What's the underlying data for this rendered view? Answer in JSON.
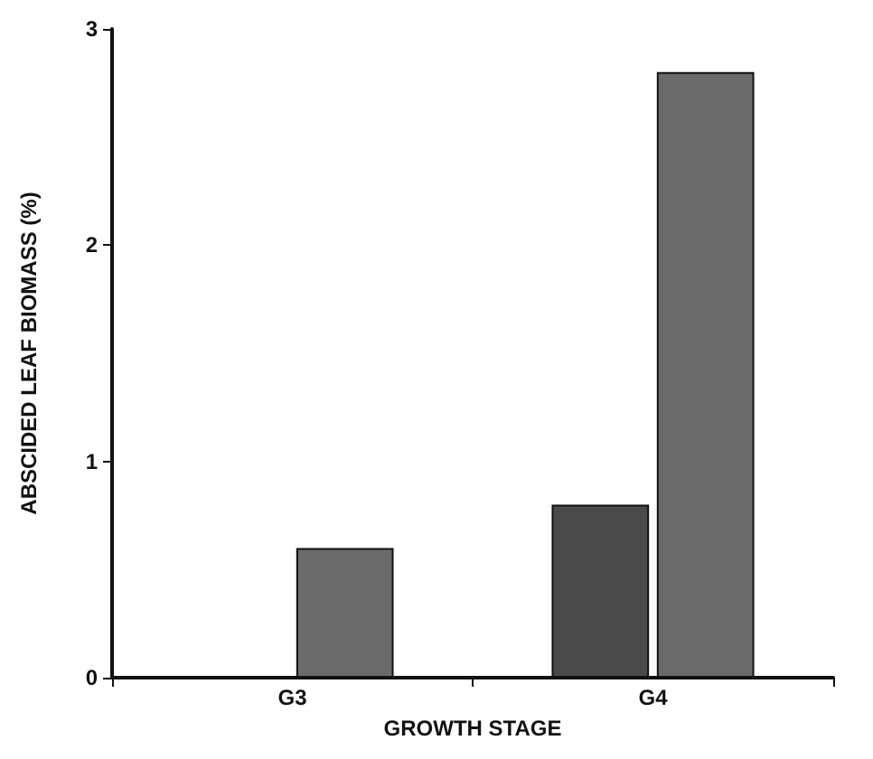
{
  "chart_data": {
    "type": "bar",
    "xlabel": "GROWTH STAGE",
    "ylabel": "ABSCIDED LEAF BIOMASS (%)",
    "categories": [
      "G3",
      "G4"
    ],
    "series": [
      {
        "color": "#4a4a4a",
        "values": [
          null,
          0.8
        ]
      },
      {
        "color": "#6a6a6a",
        "values": [
          0.6,
          2.8
        ]
      }
    ],
    "ylim": [
      0,
      3
    ],
    "yticks": [
      0,
      1,
      2,
      3
    ],
    "grid": false
  }
}
